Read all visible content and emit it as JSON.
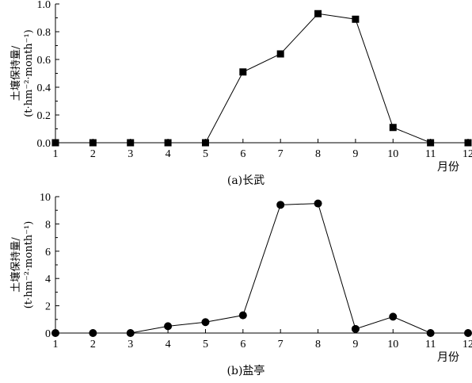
{
  "chart_data": [
    {
      "type": "line",
      "caption": "(a)长武",
      "xlabel": "月份",
      "ylabel_line1": "土壤保持量/",
      "ylabel_line2": "(t·hm⁻²·month⁻¹)",
      "x": [
        1,
        2,
        3,
        4,
        5,
        6,
        7,
        8,
        9,
        10,
        11,
        12
      ],
      "xlim": [
        1,
        12
      ],
      "ylim": [
        0,
        1.0
      ],
      "yticks": [
        0,
        0.2,
        0.4,
        0.6,
        0.8,
        1.0
      ],
      "ytick_labels": [
        "0.0",
        "0.2",
        "0.4",
        "0.6",
        "0.8",
        "1.0"
      ],
      "marker": "square",
      "grid": false,
      "series": [
        {
          "values": [
            0,
            0,
            0,
            0,
            0,
            0.51,
            0.64,
            0.93,
            0.89,
            0.11,
            0,
            0
          ]
        }
      ]
    },
    {
      "type": "line",
      "caption": "(b)盐亭",
      "xlabel": "月份",
      "ylabel_line1": "土壤保持量/",
      "ylabel_line2": "(t·hm⁻²·month⁻¹)",
      "x": [
        1,
        2,
        3,
        4,
        5,
        6,
        7,
        8,
        9,
        10,
        11,
        12
      ],
      "xlim": [
        1,
        12
      ],
      "ylim": [
        0,
        10
      ],
      "yticks": [
        0,
        2,
        4,
        6,
        8,
        10
      ],
      "ytick_labels": [
        "0",
        "2",
        "4",
        "6",
        "8",
        "10"
      ],
      "marker": "circle",
      "grid": false,
      "series": [
        {
          "values": [
            0,
            0,
            0,
            0.5,
            0.8,
            1.3,
            9.4,
            9.5,
            0.3,
            1.2,
            0,
            0
          ]
        }
      ]
    }
  ]
}
